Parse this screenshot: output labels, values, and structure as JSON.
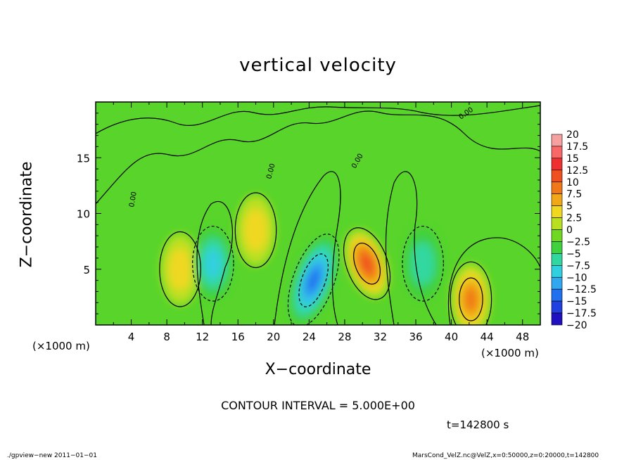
{
  "chart_data": {
    "type": "heatmap",
    "title": "vertical velocity",
    "xlabel": "X−coordinate",
    "ylabel": "Z−coordinate",
    "x_unit": "(×1000 m)",
    "xlim": [
      0,
      50
    ],
    "ylim": [
      0,
      20
    ],
    "x_ticks": [
      "4",
      "8",
      "12",
      "16",
      "20",
      "24",
      "28",
      "32",
      "36",
      "40",
      "44",
      "48"
    ],
    "y_ticks": [
      "5",
      "10",
      "15"
    ],
    "contour_interval": "CONTOUR INTERVAL = 5.000E+00",
    "contour_label": "0.00",
    "time_label": "t=142800 s",
    "colorbar": {
      "levels": [
        "20",
        "17.5",
        "15",
        "12.5",
        "10",
        "7.5",
        "5",
        "2.5",
        "0",
        "−2.5",
        "−5",
        "−7.5",
        "−10",
        "−12.5",
        "−15",
        "−17.5",
        "−20"
      ],
      "colors": [
        "#f7a0a0",
        "#f86868",
        "#f03030",
        "#f05020",
        "#f07818",
        "#f0a818",
        "#f0d820",
        "#b8e020",
        "#70d820",
        "#40d040",
        "#30d8a0",
        "#30d0e0",
        "#30a8f0",
        "#2070f0",
        "#2040e0",
        "#2010c0",
        "#6010b0"
      ]
    },
    "features": [
      {
        "type": "updraft",
        "x": 30.5,
        "z": 5.5,
        "peak": 12.5
      },
      {
        "type": "updraft",
        "x": 42.2,
        "z": 2.3,
        "peak": 10
      },
      {
        "type": "updraft",
        "x": 18,
        "z": 8.5,
        "peak": 5
      },
      {
        "type": "updraft",
        "x": 9.5,
        "z": 5,
        "peak": 5
      },
      {
        "type": "downdraft",
        "x": 24.5,
        "z": 4,
        "peak": -12.5
      },
      {
        "type": "downdraft",
        "x": 13.2,
        "z": 5.5,
        "peak": -7.5
      },
      {
        "type": "downdraft",
        "x": 36.8,
        "z": 5.5,
        "peak": -5
      }
    ]
  },
  "footer": {
    "left": "./gpview−new  2011−01−01",
    "right": "MarsCond_VelZ.nc@VelZ,x=0:50000,z=0:20000,t=142800"
  }
}
